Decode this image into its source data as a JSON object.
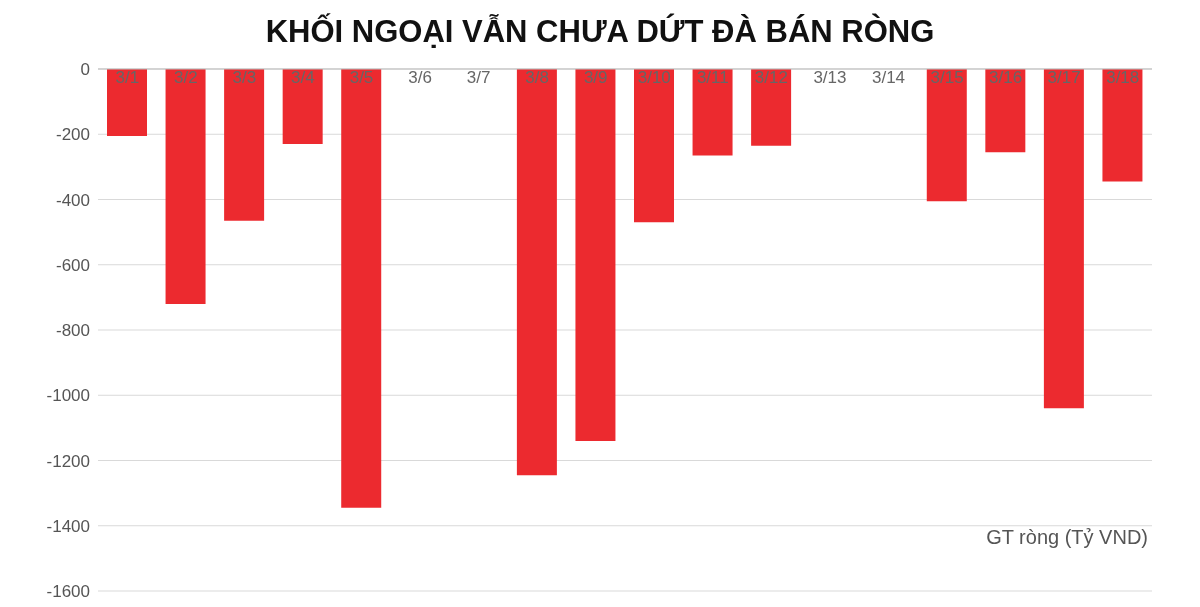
{
  "chart_data": {
    "type": "bar",
    "title": "KHỐI NGOẠI VẪN CHƯA DỨT ĐÀ BÁN RÒNG",
    "categories": [
      "3/1",
      "3/2",
      "3/3",
      "3/4",
      "3/5",
      "3/6",
      "3/7",
      "3/8",
      "3/9",
      "3/10",
      "3/11",
      "3/12",
      "3/13",
      "3/14",
      "3/15",
      "3/16",
      "3/17",
      "3/18"
    ],
    "values": [
      -205,
      -720,
      -465,
      -230,
      -1345,
      0,
      0,
      -1245,
      -1140,
      -470,
      -265,
      -235,
      0,
      0,
      -405,
      -255,
      -1040,
      -345
    ],
    "color": "#ec2a2f",
    "ylim": [
      -1600,
      0
    ],
    "yticks": [
      0,
      -200,
      -400,
      -600,
      -800,
      -1000,
      -1200,
      -1400,
      -1600
    ],
    "grid": "y",
    "annotations": [
      "GT ròng (Tỷ VND)"
    ]
  }
}
